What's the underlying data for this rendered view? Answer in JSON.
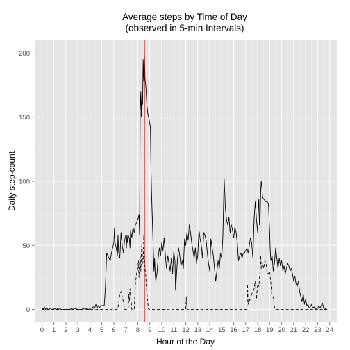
{
  "chart_data": {
    "type": "line",
    "title": [
      "Average steps by Time of Day",
      "(observed in 5-min Intervals)"
    ],
    "xlabel": "Hour of the Day",
    "ylabel": "Daily step-count",
    "xlim": [
      -0.6,
      24.6
    ],
    "ylim": [
      -10,
      210
    ],
    "x_ticks": [
      0,
      1,
      2,
      3,
      4,
      5,
      6,
      7,
      8,
      9,
      10,
      11,
      12,
      13,
      14,
      15,
      16,
      17,
      18,
      19,
      20,
      21,
      22,
      23,
      24
    ],
    "x_tick_labels": [
      "0",
      "1",
      "2",
      "3",
      "4",
      "5",
      "6",
      "7",
      "8",
      "9",
      "10",
      "11",
      "12",
      "13",
      "14",
      "15",
      "16",
      "17",
      "18",
      "19",
      "20",
      "21",
      "22",
      "23",
      "24"
    ],
    "y_ticks": [
      0,
      50,
      100,
      150,
      200
    ],
    "y_tick_labels": [
      "0",
      "50",
      "100",
      "150",
      "200"
    ],
    "grid": true,
    "background": "#e5e5e5",
    "vline": {
      "x": 8.55,
      "color": "#cc0000"
    },
    "series": [
      {
        "style": "solid",
        "color": "#000000",
        "points": [
          [
            0,
            1
          ],
          [
            0.1,
            0
          ],
          [
            0.2,
            2
          ],
          [
            0.3,
            0
          ],
          [
            0.4,
            1
          ],
          [
            0.5,
            0
          ],
          [
            0.6,
            0
          ],
          [
            0.7,
            1
          ],
          [
            0.8,
            0
          ],
          [
            0.9,
            0
          ],
          [
            1,
            1
          ],
          [
            1.2,
            0
          ],
          [
            1.4,
            1
          ],
          [
            1.6,
            0
          ],
          [
            1.8,
            0
          ],
          [
            2,
            0
          ],
          [
            2.3,
            0
          ],
          [
            2.6,
            1
          ],
          [
            3,
            0
          ],
          [
            3.3,
            0
          ],
          [
            3.6,
            1
          ],
          [
            3.9,
            0
          ],
          [
            4.1,
            1
          ],
          [
            4.3,
            2
          ],
          [
            4.4,
            1
          ],
          [
            4.5,
            4
          ],
          [
            4.6,
            1
          ],
          [
            4.7,
            3
          ],
          [
            4.8,
            1
          ],
          [
            4.9,
            3
          ],
          [
            5,
            3
          ],
          [
            5.2,
            3
          ],
          [
            5.25,
            10
          ],
          [
            5.3,
            18
          ],
          [
            5.35,
            30
          ],
          [
            5.4,
            44
          ],
          [
            5.5,
            42
          ],
          [
            5.6,
            40
          ],
          [
            5.7,
            38
          ],
          [
            5.8,
            44
          ],
          [
            5.9,
            48
          ],
          [
            6,
            52
          ],
          [
            6.05,
            63
          ],
          [
            6.1,
            52
          ],
          [
            6.2,
            48
          ],
          [
            6.3,
            42
          ],
          [
            6.35,
            58
          ],
          [
            6.4,
            45
          ],
          [
            6.5,
            40
          ],
          [
            6.6,
            60
          ],
          [
            6.7,
            50
          ],
          [
            6.8,
            44
          ],
          [
            6.9,
            54
          ],
          [
            7,
            58
          ],
          [
            7.05,
            48
          ],
          [
            7.1,
            58
          ],
          [
            7.15,
            52
          ],
          [
            7.2,
            58
          ],
          [
            7.3,
            55
          ],
          [
            7.35,
            48
          ],
          [
            7.4,
            62
          ],
          [
            7.5,
            56
          ],
          [
            7.6,
            64
          ],
          [
            7.7,
            60
          ],
          [
            7.8,
            66
          ],
          [
            7.9,
            68
          ],
          [
            8,
            70
          ],
          [
            8.1,
            74
          ],
          [
            8.15,
            58
          ],
          [
            8.2,
            155
          ],
          [
            8.25,
            170
          ],
          [
            8.3,
            150
          ],
          [
            8.35,
            168
          ],
          [
            8.4,
            160
          ],
          [
            8.45,
            195
          ],
          [
            8.5,
            178
          ],
          [
            8.55,
            203
          ],
          [
            8.6,
            180
          ],
          [
            8.65,
            176
          ],
          [
            8.7,
            170
          ],
          [
            8.75,
            160
          ],
          [
            8.8,
            156
          ],
          [
            8.85,
            152
          ],
          [
            8.9,
            150
          ],
          [
            8.95,
            148
          ],
          [
            9,
            145
          ],
          [
            9.05,
            142
          ],
          [
            9.1,
            110
          ],
          [
            9.15,
            90
          ],
          [
            9.2,
            75
          ],
          [
            9.25,
            60
          ],
          [
            9.3,
            45
          ],
          [
            9.35,
            30
          ],
          [
            9.4,
            40
          ],
          [
            9.45,
            28
          ],
          [
            9.5,
            22
          ],
          [
            9.6,
            28
          ],
          [
            9.7,
            40
          ],
          [
            9.8,
            48
          ],
          [
            9.9,
            42
          ],
          [
            10,
            52
          ],
          [
            10.1,
            46
          ],
          [
            10.2,
            56
          ],
          [
            10.3,
            42
          ],
          [
            10.4,
            32
          ],
          [
            10.5,
            42
          ],
          [
            10.6,
            36
          ],
          [
            10.7,
            30
          ],
          [
            10.8,
            40
          ],
          [
            10.9,
            28
          ],
          [
            11,
            45
          ],
          [
            11.1,
            38
          ],
          [
            11.15,
            15
          ],
          [
            11.2,
            22
          ],
          [
            11.3,
            38
          ],
          [
            11.4,
            48
          ],
          [
            11.5,
            42
          ],
          [
            11.6,
            34
          ],
          [
            11.7,
            38
          ],
          [
            11.8,
            32
          ],
          [
            11.9,
            55
          ],
          [
            12,
            50
          ],
          [
            12.1,
            60
          ],
          [
            12.2,
            54
          ],
          [
            12.3,
            66
          ],
          [
            12.4,
            60
          ],
          [
            12.5,
            52
          ],
          [
            12.6,
            46
          ],
          [
            12.7,
            40
          ],
          [
            12.8,
            48
          ],
          [
            12.9,
            36
          ],
          [
            13,
            42
          ],
          [
            13.1,
            62
          ],
          [
            13.2,
            55
          ],
          [
            13.3,
            50
          ],
          [
            13.4,
            40
          ],
          [
            13.5,
            60
          ],
          [
            13.6,
            58
          ],
          [
            13.7,
            54
          ],
          [
            13.8,
            44
          ],
          [
            13.9,
            36
          ],
          [
            14,
            30
          ],
          [
            14.1,
            55
          ],
          [
            14.2,
            48
          ],
          [
            14.3,
            42
          ],
          [
            14.4,
            32
          ],
          [
            14.5,
            22
          ],
          [
            14.6,
            30
          ],
          [
            14.7,
            38
          ],
          [
            14.8,
            32
          ],
          [
            14.9,
            44
          ],
          [
            15,
            40
          ],
          [
            15.1,
            58
          ],
          [
            15.15,
            80
          ],
          [
            15.2,
            102
          ],
          [
            15.25,
            92
          ],
          [
            15.3,
            80
          ],
          [
            15.4,
            70
          ],
          [
            15.5,
            66
          ],
          [
            15.6,
            72
          ],
          [
            15.7,
            60
          ],
          [
            15.8,
            66
          ],
          [
            15.9,
            62
          ],
          [
            16,
            56
          ],
          [
            16.1,
            64
          ],
          [
            16.2,
            60
          ],
          [
            16.3,
            52
          ],
          [
            16.4,
            38
          ],
          [
            16.5,
            42
          ],
          [
            16.6,
            44
          ],
          [
            16.7,
            40
          ],
          [
            16.8,
            44
          ],
          [
            16.9,
            44
          ],
          [
            17,
            46
          ],
          [
            17.1,
            48
          ],
          [
            17.2,
            44
          ],
          [
            17.3,
            50
          ],
          [
            17.4,
            56
          ],
          [
            17.5,
            52
          ],
          [
            17.6,
            40
          ],
          [
            17.7,
            70
          ],
          [
            17.8,
            84
          ],
          [
            17.9,
            70
          ],
          [
            18,
            60
          ],
          [
            18.05,
            78
          ],
          [
            18.1,
            86
          ],
          [
            18.15,
            66
          ],
          [
            18.2,
            70
          ],
          [
            18.25,
            92
          ],
          [
            18.3,
            100
          ],
          [
            18.35,
            96
          ],
          [
            18.4,
            88
          ],
          [
            18.5,
            86
          ],
          [
            18.6,
            85
          ],
          [
            18.7,
            84
          ],
          [
            18.8,
            84
          ],
          [
            18.9,
            82
          ],
          [
            19,
            60
          ],
          [
            19.05,
            45
          ],
          [
            19.1,
            38
          ],
          [
            19.2,
            42
          ],
          [
            19.3,
            30
          ],
          [
            19.4,
            36
          ],
          [
            19.5,
            48
          ],
          [
            19.6,
            40
          ],
          [
            19.7,
            32
          ],
          [
            19.8,
            40
          ],
          [
            19.9,
            34
          ],
          [
            20,
            38
          ],
          [
            20.1,
            30
          ],
          [
            20.2,
            34
          ],
          [
            20.3,
            28
          ],
          [
            20.4,
            32
          ],
          [
            20.5,
            36
          ],
          [
            20.6,
            34
          ],
          [
            20.7,
            30
          ],
          [
            20.8,
            32
          ],
          [
            20.9,
            28
          ],
          [
            21,
            22
          ],
          [
            21.1,
            26
          ],
          [
            21.2,
            20
          ],
          [
            21.3,
            18
          ],
          [
            21.4,
            22
          ],
          [
            21.5,
            14
          ],
          [
            21.6,
            10
          ],
          [
            21.7,
            6
          ],
          [
            21.8,
            12
          ],
          [
            21.9,
            4
          ],
          [
            22,
            8
          ],
          [
            22.1,
            3
          ],
          [
            22.2,
            4
          ],
          [
            22.3,
            1
          ],
          [
            22.4,
            2
          ],
          [
            22.5,
            4
          ],
          [
            22.6,
            1
          ],
          [
            22.7,
            2
          ],
          [
            22.8,
            0
          ],
          [
            22.9,
            1
          ],
          [
            23,
            1
          ],
          [
            23.1,
            3
          ],
          [
            23.2,
            1
          ],
          [
            23.3,
            3
          ],
          [
            23.4,
            5
          ],
          [
            23.5,
            1
          ],
          [
            23.6,
            0
          ],
          [
            23.7,
            1
          ],
          [
            23.8,
            1
          ]
        ]
      },
      {
        "style": "dashed",
        "color": "#000000",
        "points": [
          [
            0,
            0
          ],
          [
            6.3,
            0
          ],
          [
            6.4,
            4
          ],
          [
            6.5,
            12
          ],
          [
            6.6,
            14
          ],
          [
            6.7,
            10
          ],
          [
            6.8,
            6
          ],
          [
            6.9,
            0
          ],
          [
            7.2,
            0
          ],
          [
            7.25,
            12
          ],
          [
            7.3,
            6
          ],
          [
            7.35,
            16
          ],
          [
            7.4,
            10
          ],
          [
            7.45,
            6
          ],
          [
            7.5,
            0
          ],
          [
            7.7,
            0
          ],
          [
            7.8,
            20
          ],
          [
            7.9,
            28
          ],
          [
            8,
            32
          ],
          [
            8.05,
            38
          ],
          [
            8.1,
            25
          ],
          [
            8.15,
            38
          ],
          [
            8.2,
            42
          ],
          [
            8.25,
            30
          ],
          [
            8.3,
            44
          ],
          [
            8.35,
            52
          ],
          [
            8.4,
            36
          ],
          [
            8.45,
            38
          ],
          [
            8.5,
            58
          ],
          [
            8.55,
            46
          ],
          [
            8.6,
            32
          ],
          [
            8.65,
            28
          ],
          [
            8.7,
            20
          ],
          [
            8.75,
            14
          ],
          [
            8.8,
            8
          ],
          [
            8.85,
            4
          ],
          [
            8.9,
            0
          ],
          [
            12,
            0
          ],
          [
            12.05,
            10
          ],
          [
            12.1,
            0
          ],
          [
            17.1,
            0
          ],
          [
            17.15,
            20
          ],
          [
            17.2,
            4
          ],
          [
            17.3,
            8
          ],
          [
            17.4,
            6
          ],
          [
            17.5,
            12
          ],
          [
            17.6,
            14
          ],
          [
            17.7,
            16
          ],
          [
            17.8,
            22
          ],
          [
            17.9,
            8
          ],
          [
            18,
            20
          ],
          [
            18.1,
            18
          ],
          [
            18.2,
            30
          ],
          [
            18.25,
            42
          ],
          [
            18.3,
            32
          ],
          [
            18.4,
            36
          ],
          [
            18.5,
            32
          ],
          [
            18.6,
            38
          ],
          [
            18.7,
            36
          ],
          [
            18.8,
            28
          ],
          [
            18.9,
            28
          ],
          [
            19,
            30
          ],
          [
            19.1,
            20
          ],
          [
            19.2,
            8
          ],
          [
            19.3,
            10
          ],
          [
            19.4,
            2
          ],
          [
            19.5,
            0
          ],
          [
            23.8,
            0
          ]
        ]
      }
    ]
  }
}
